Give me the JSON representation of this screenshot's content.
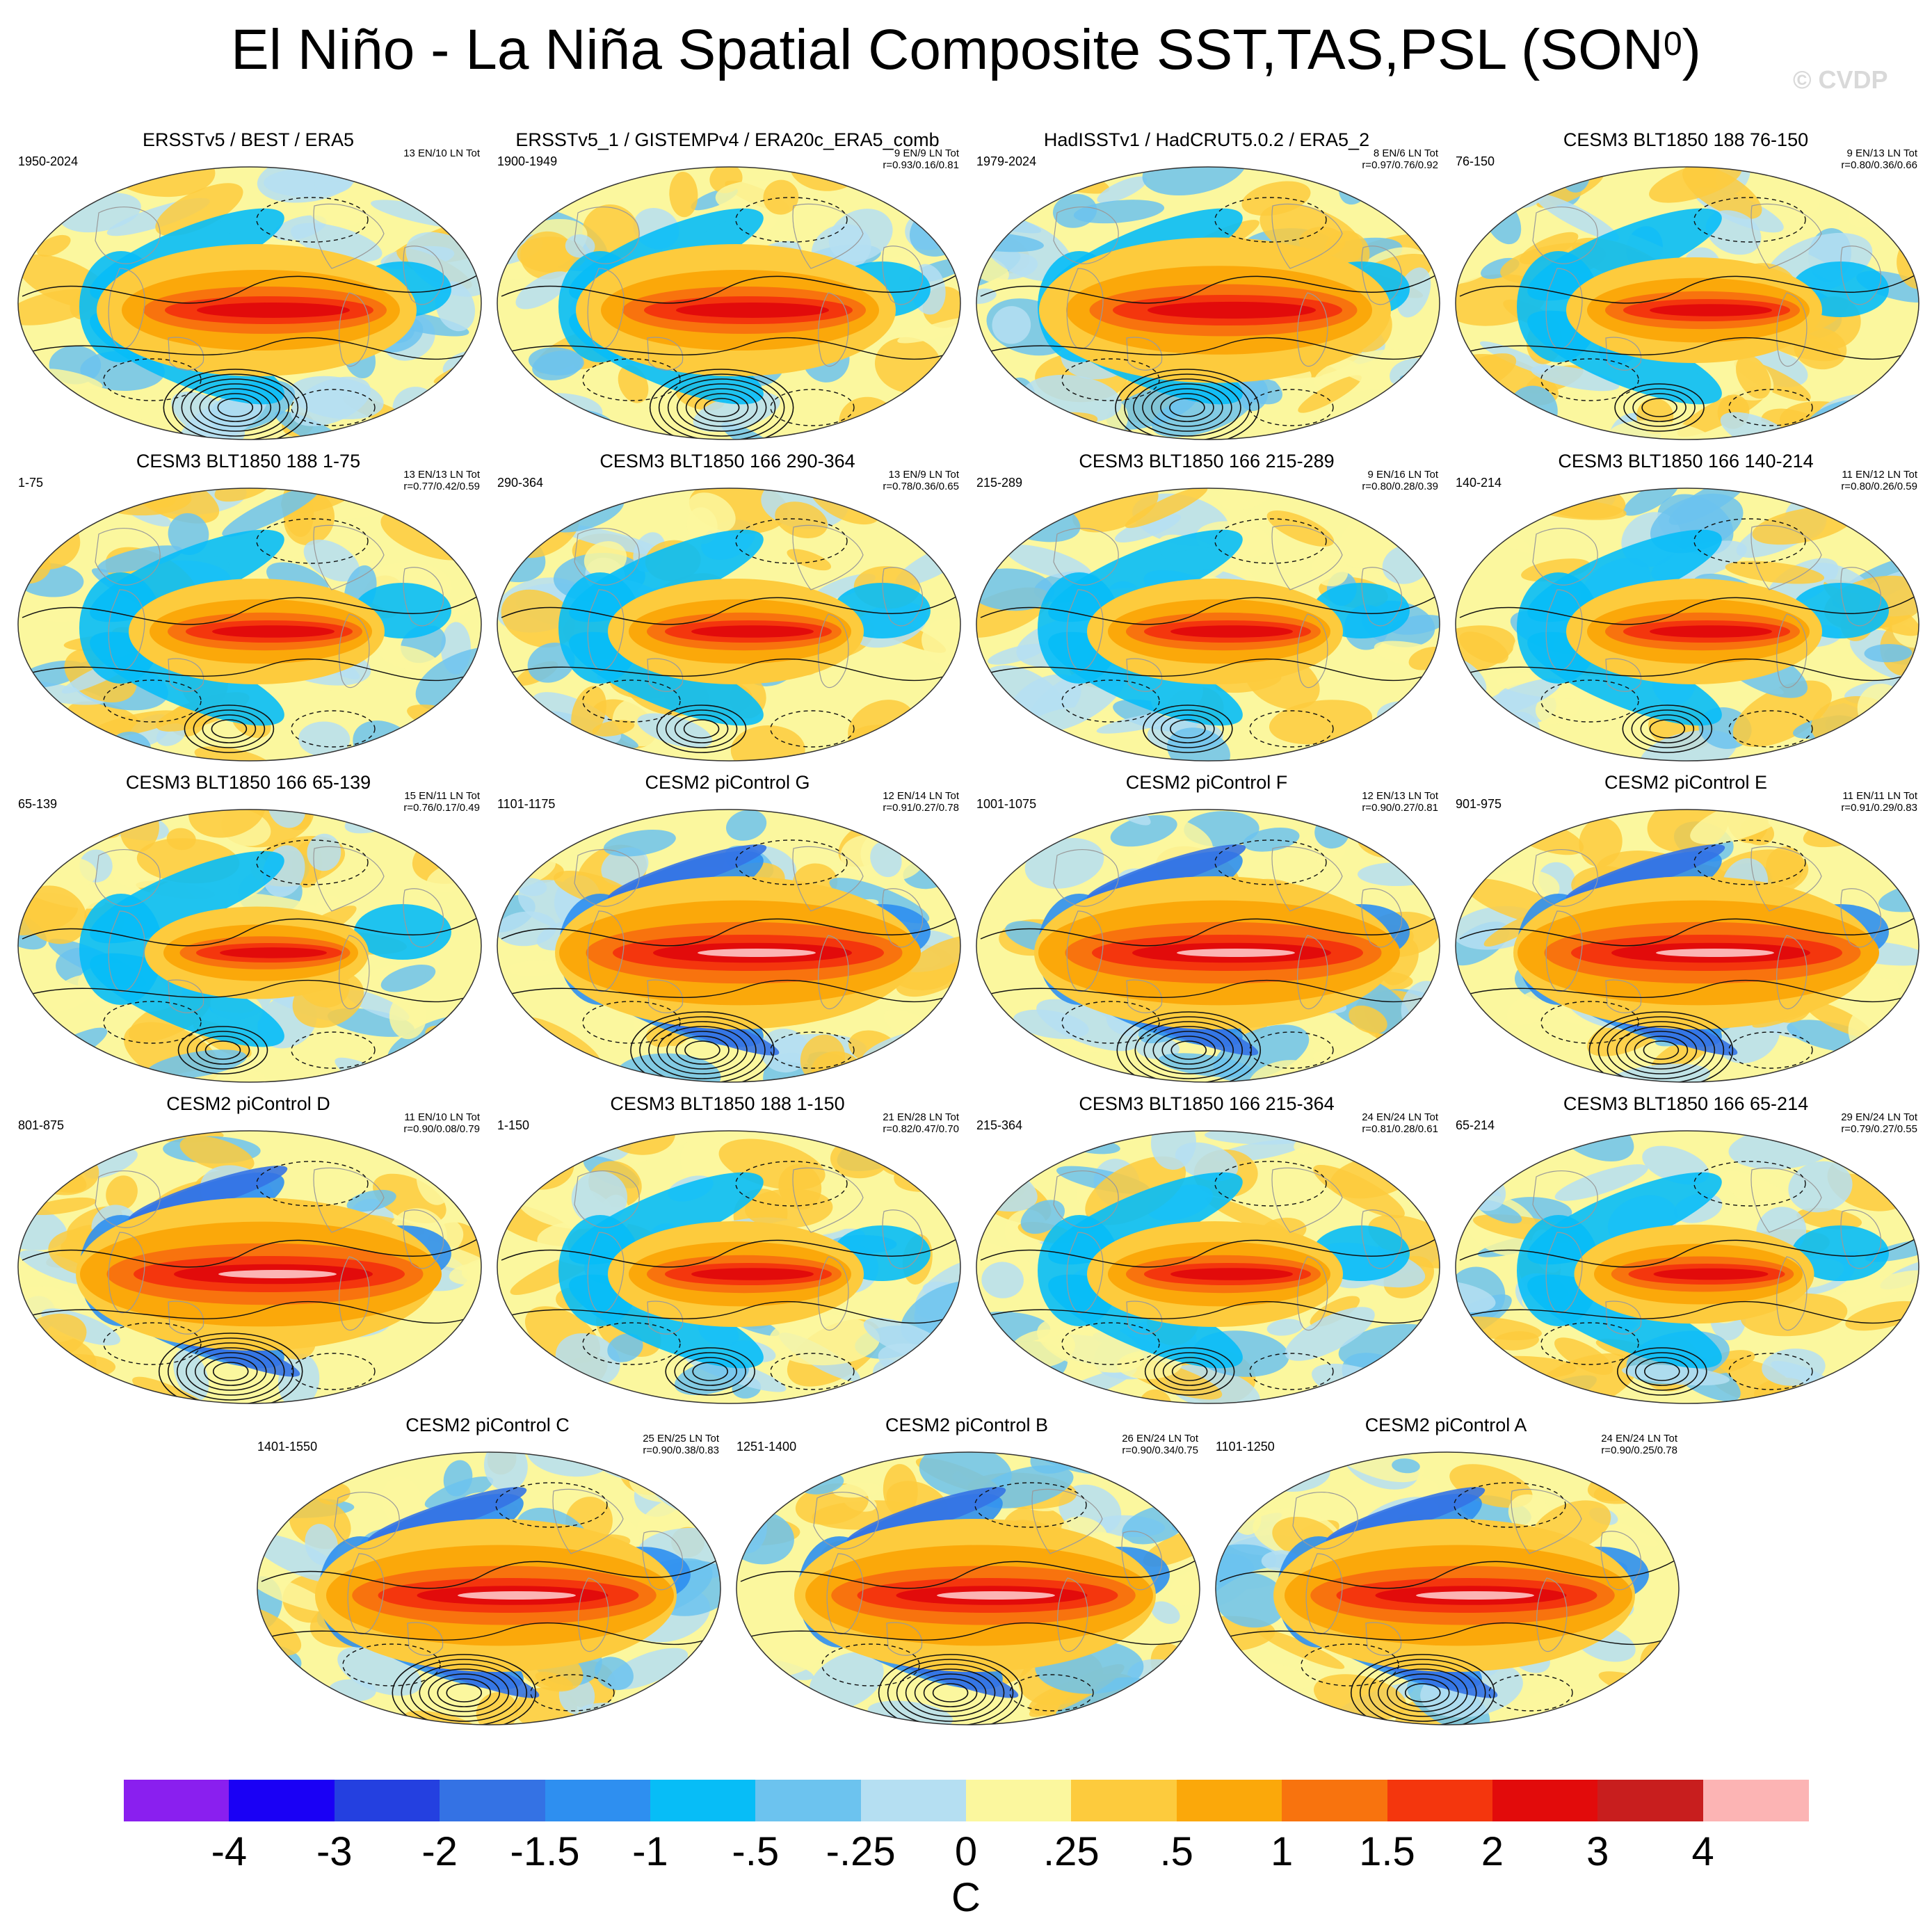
{
  "title": "El Niño - La Niña Spatial Composite SST,TAS,PSL (SON",
  "title_sup": "0",
  "title_close": ")",
  "watermark": "© CVDP",
  "panels": [
    {
      "title": "ERSSTv5 / BEST / ERA5",
      "years": "1950-2024",
      "count": "13 EN/10 LN Tot",
      "r": "",
      "pattern": "obs",
      "intensity": 1.0,
      "seed": 3
    },
    {
      "title": "ERSSTv5_1 / GISTEMPv4 / ERA20c_ERA5_comb",
      "years": "1900-1949",
      "count": "9 EN/9 LN Tot",
      "r": "r=0.93/0.16/0.81",
      "pattern": "obs",
      "intensity": 1.0,
      "seed": 7
    },
    {
      "title": "HadISSTv1 / HadCRUT5.0.2 / ERA5_2",
      "years": "1979-2024",
      "count": "8 EN/6 LN Tot",
      "r": "r=0.97/0.76/0.92",
      "pattern": "obs",
      "intensity": 1.1,
      "seed": 11
    },
    {
      "title": "CESM3 BLT1850 188 76-150",
      "years": "76-150",
      "count": "9 EN/13 LN Tot",
      "r": "r=0.80/0.36/0.66",
      "pattern": "cesm3",
      "intensity": 0.8,
      "seed": 13
    },
    {
      "title": "CESM3 BLT1850 188 1-75",
      "years": "1-75",
      "count": "13 EN/13 LN Tot",
      "r": "r=0.77/0.42/0.59",
      "pattern": "cesm3",
      "intensity": 0.8,
      "seed": 17
    },
    {
      "title": "CESM3 BLT1850 166 290-364",
      "years": "290-364",
      "count": "13 EN/9 LN Tot",
      "r": "r=0.78/0.36/0.65",
      "pattern": "cesm3",
      "intensity": 0.8,
      "seed": 19
    },
    {
      "title": "CESM3 BLT1850 166 215-289",
      "years": "215-289",
      "count": "9 EN/16 LN Tot",
      "r": "r=0.80/0.28/0.39",
      "pattern": "cesm3",
      "intensity": 0.8,
      "seed": 23
    },
    {
      "title": "CESM3 BLT1850 166 140-214",
      "years": "140-214",
      "count": "11 EN/12 LN Tot",
      "r": "r=0.80/0.26/0.59",
      "pattern": "cesm3",
      "intensity": 0.8,
      "seed": 29
    },
    {
      "title": "CESM3 BLT1850 166 65-139",
      "years": "65-139",
      "count": "15 EN/11 LN Tot",
      "r": "r=0.76/0.17/0.49",
      "pattern": "cesm3",
      "intensity": 0.7,
      "seed": 31
    },
    {
      "title": "CESM2 piControl G",
      "years": "1101-1175",
      "count": "12 EN/14 LN Tot",
      "r": "r=0.91/0.27/0.78",
      "pattern": "cesm2",
      "intensity": 1.3,
      "seed": 37
    },
    {
      "title": "CESM2 piControl F",
      "years": "1001-1075",
      "count": "12 EN/13 LN Tot",
      "r": "r=0.90/0.27/0.81",
      "pattern": "cesm2",
      "intensity": 1.3,
      "seed": 41
    },
    {
      "title": "CESM2 piControl E",
      "years": "901-975",
      "count": "11 EN/11 LN Tot",
      "r": "r=0.91/0.29/0.83",
      "pattern": "cesm2",
      "intensity": 1.3,
      "seed": 43
    },
    {
      "title": "CESM2 piControl D",
      "years": "801-875",
      "count": "11 EN/10 LN Tot",
      "r": "r=0.90/0.08/0.79",
      "pattern": "cesm2",
      "intensity": 1.3,
      "seed": 47
    },
    {
      "title": "CESM3 BLT1850 188 1-150",
      "years": "1-150",
      "count": "21 EN/28 LN Tot",
      "r": "r=0.82/0.47/0.70",
      "pattern": "cesm3",
      "intensity": 0.8,
      "seed": 53
    },
    {
      "title": "CESM3 BLT1850 166 215-364",
      "years": "215-364",
      "count": "24 EN/24 LN Tot",
      "r": "r=0.81/0.28/0.61",
      "pattern": "cesm3",
      "intensity": 0.8,
      "seed": 59
    },
    {
      "title": "CESM3 BLT1850 166 65-214",
      "years": "65-214",
      "count": "29 EN/24 LN Tot",
      "r": "r=0.79/0.27/0.55",
      "pattern": "cesm3",
      "intensity": 0.75,
      "seed": 61
    },
    {
      "title": "CESM2 piControl C",
      "years": "1401-1550",
      "count": "25 EN/25 LN Tot",
      "r": "r=0.90/0.38/0.83",
      "pattern": "cesm2",
      "intensity": 1.25,
      "seed": 67
    },
    {
      "title": "CESM2 piControl B",
      "years": "1251-1400",
      "count": "26 EN/24 LN Tot",
      "r": "r=0.90/0.34/0.75",
      "pattern": "cesm2",
      "intensity": 1.25,
      "seed": 71
    },
    {
      "title": "CESM2 piControl A",
      "years": "1101-1250",
      "count": "24 EN/24 LN Tot",
      "r": "r=0.90/0.25/0.78",
      "pattern": "cesm2",
      "intensity": 1.25,
      "seed": 73
    }
  ],
  "colorbar": {
    "colors": [
      "#8a1fef",
      "#1a00f5",
      "#2440e0",
      "#3472e4",
      "#2e8ff0",
      "#07bdf7",
      "#6cc3ef",
      "#b5dff2",
      "#fbf79e",
      "#fdcb3d",
      "#fba80a",
      "#f8730e",
      "#f4360d",
      "#e20b0b",
      "#c81e1e",
      "#fcb4b4"
    ],
    "ticks": [
      "-4",
      "-3",
      "-2",
      "-1.5",
      "-1",
      "-.5",
      "-.25",
      "0",
      ".25",
      ".5",
      "1",
      "1.5",
      "2",
      "3",
      "4"
    ],
    "unit": "C"
  }
}
